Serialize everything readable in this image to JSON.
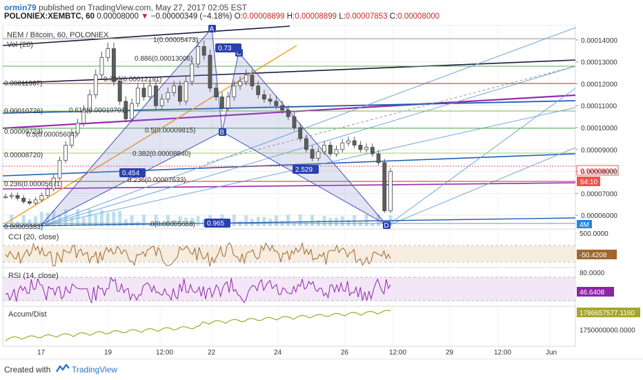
{
  "header": {
    "author": "ormin79",
    "published_text": "published on TradingView.com, May 27, 2017 02:05 EST",
    "symbol": "POLONIEX:XEMBTC, 60",
    "last_price": "0.00008000",
    "change_arrow": "▼",
    "change": "−0.00000349 (−4.18%)",
    "o_label": "O:",
    "o_value": "0.00008899",
    "h_label": "H:",
    "h_value": "0.00008899",
    "l_label": "L:",
    "l_value": "0.00007853",
    "c_label": "C:",
    "c_value": "0.00008000"
  },
  "chart_data": {
    "type": "candlestick",
    "title": "NEM / Bitcoin, 60, POLONIEX",
    "volume_label": "Vol (20)",
    "ylim": [
      5.5e-05,
      0.000145
    ],
    "y_ticks": [
      "0.00014000",
      "0.00013000",
      "0.00012000",
      "0.00011000",
      "0.00010000",
      "0.00009000",
      "0.00008000",
      "0.00007000",
      "0.00006000"
    ],
    "x_ticks": [
      "17",
      "19",
      "12:00",
      "22",
      "24",
      "26",
      "12:00",
      "29",
      "12:00",
      "Jun"
    ],
    "price_tag": "0.00008000",
    "countdown_tag": "54:10",
    "volume_tag": "4M",
    "close_series": [
      6.85e-05,
      6.9e-05,
      6.78e-05,
      6.62e-05,
      6.55e-05,
      6.7e-05,
      6.9e-05,
      7.2e-05,
      7.7e-05,
      8.5e-05,
      9.2e-05,
      9.75e-05,
      0.000102,
      0.000108,
      0.000115,
      0.000124,
      0.000132,
      0.000136,
      0.000121,
      0.000112,
      0.000104,
      0.000111,
      0.000118,
      0.000114,
      0.000119,
      0.00011,
      0.000113,
      0.000116,
      0.000119,
      0.000112,
      0.000121,
      0.000129,
      0.000137,
      0.000133,
      0.000118,
      0.000114,
      0.000109,
      0.000114,
      0.000119,
      0.000121,
      0.000124,
      0.000119,
      0.000115,
      0.000113,
      0.000112,
      0.00011,
      0.000108,
      0.000105,
      0.0001,
      9.5e-05,
      9e-05,
      8.6e-05,
      8.9e-05,
      9.2e-05,
      8.8e-05,
      9e-05,
      9.3e-05,
      9.4e-05,
      9.2e-05,
      9e-05,
      9.1e-05,
      8.8e-05,
      8.4e-05,
      6.2e-05,
      8e-05
    ],
    "fib_labels": [
      "1(0.00005473)",
      "0.886(0.00013006)",
      "0.786(0.00012191)",
      "0.618(0.00010701)",
      "0.5(0.00009815)",
      "0.382(0.00008840)",
      "0.236(0.00007633)",
      "0(0.00005668)"
    ],
    "left_fib_labels": [
      "0.00011967)",
      "0.00010726)",
      "0.00009723)",
      "0.5(0.00005604)",
      "0.00008720)",
      "0.236(0.00005671)",
      "0.00005383)"
    ],
    "pattern_points": [
      "A",
      "B",
      "C",
      "D"
    ],
    "pattern_ratios": [
      "0.73",
      "0.454",
      "2.529",
      "0.965"
    ],
    "indicators": [
      {
        "name": "CCI (20, close)",
        "ticks": [
          "500.0000"
        ],
        "value_tag": "-50.4208"
      },
      {
        "name": "RSI (14, close)",
        "ticks": [
          "80.0000"
        ],
        "value_tag": "46.6408"
      },
      {
        "name": "Accum/Dist",
        "ticks": [
          "1750000000.0000"
        ],
        "value_tag": "1786657577.1160"
      }
    ],
    "colors": {
      "up": "#26a69a",
      "down": "#ef5350",
      "candle_body": "#5d5d5d",
      "purple": "#9c27b0",
      "blue": "#1e5fb3",
      "orange": "#f5a623",
      "cci_tag": "#a0662a",
      "rsi_tag": "#8e24aa",
      "ad_tag": "#a6a62a"
    }
  },
  "footer": {
    "created_with": "Created with",
    "brand": "TradingView"
  }
}
